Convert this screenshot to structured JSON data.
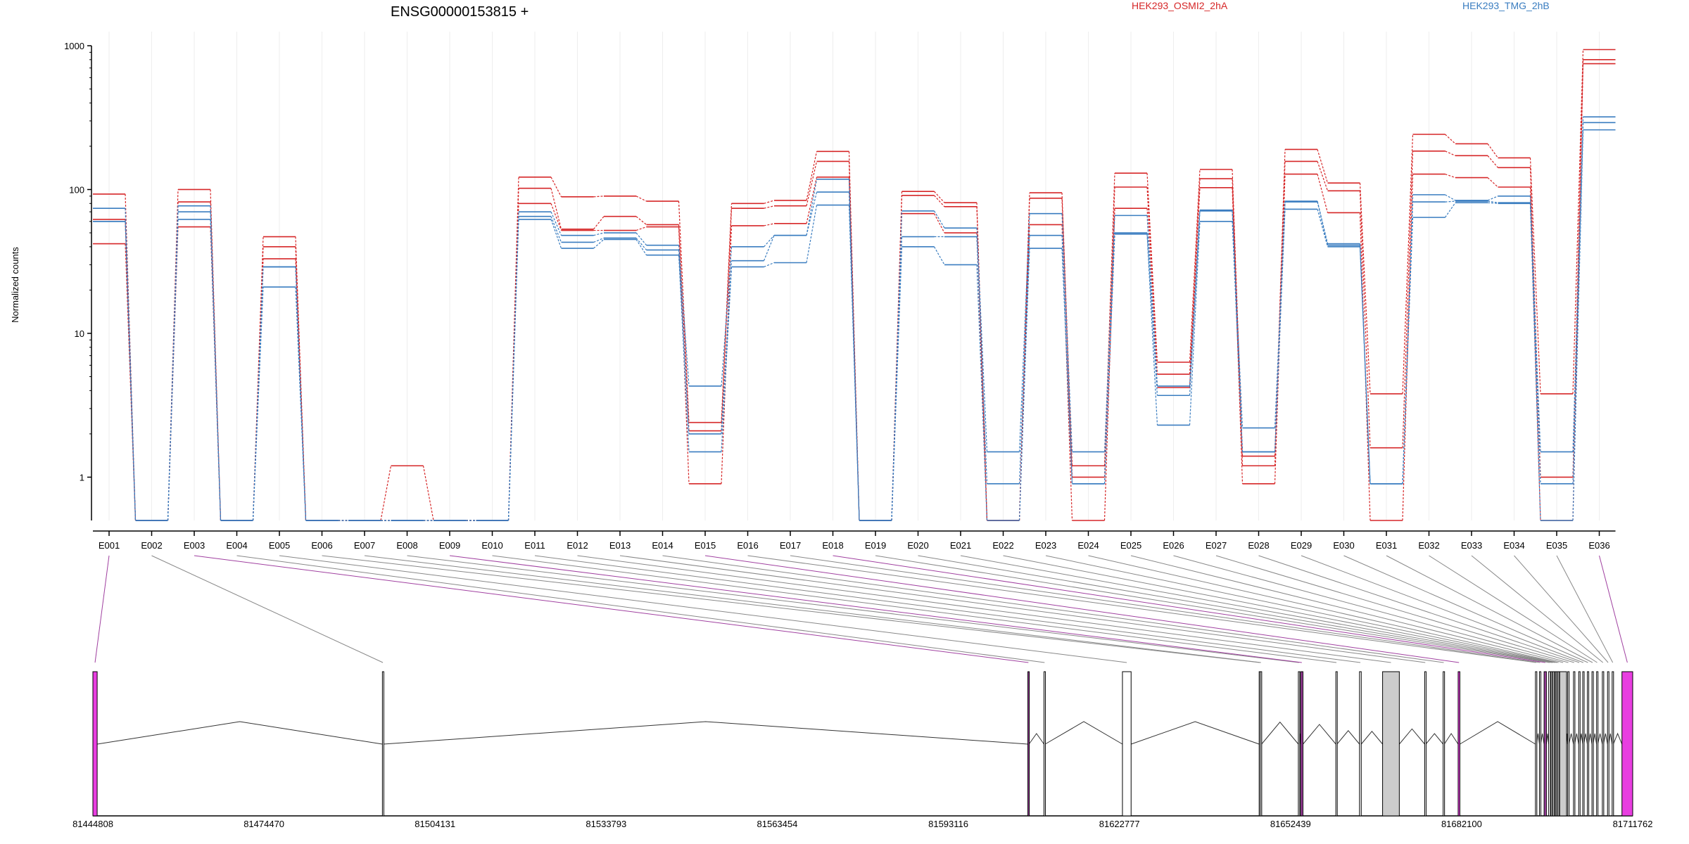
{
  "chart_data": {
    "type": "line",
    "title": "ENSG00000153815 +",
    "ylabel": "Normalized counts",
    "yscale": "log",
    "ylim": [
      0.5,
      1000
    ],
    "yticks": [
      1,
      10,
      100,
      1000
    ],
    "ytick_labels": [
      "1",
      "10",
      "100",
      "1000"
    ],
    "categories": [
      "E001",
      "E002",
      "E003",
      "E004",
      "E005",
      "E006",
      "E007",
      "E008",
      "E009",
      "E010",
      "E011",
      "E012",
      "E013",
      "E014",
      "E015",
      "E016",
      "E017",
      "E018",
      "E019",
      "E020",
      "E021",
      "E022",
      "E023",
      "E024",
      "E025",
      "E026",
      "E027",
      "E028",
      "E029",
      "E030",
      "E031",
      "E032",
      "E033",
      "E034",
      "E035",
      "E036"
    ],
    "legend": [
      {
        "label": "HEK293_OSMI2_2hA",
        "color": "#d62728"
      },
      {
        "label": "HEK293_TMG_2hB",
        "color": "#3a7dc0"
      }
    ],
    "series": [
      {
        "group": "red",
        "values": [
          93,
          0.5,
          100,
          0.5,
          47,
          0.5,
          0.5,
          1.2,
          0.5,
          0.5,
          122,
          89,
          90,
          83,
          2.4,
          80,
          84,
          184,
          0.5,
          97,
          81,
          0.5,
          95,
          1.2,
          130,
          6.3,
          138,
          1.4,
          190,
          111,
          3.8,
          242,
          208,
          166,
          3.8,
          940
        ]
      },
      {
        "group": "red",
        "values": [
          62,
          0.5,
          82,
          0.5,
          40,
          0.5,
          0.5,
          0.5,
          0.5,
          0.5,
          102,
          53,
          65,
          57,
          2.1,
          74,
          77,
          157,
          0.5,
          91,
          76,
          0.5,
          87,
          1.0,
          104,
          5.2,
          119,
          1.2,
          157,
          98,
          1.6,
          185,
          172,
          142,
          1.0,
          800
        ]
      },
      {
        "group": "red",
        "values": [
          42,
          0.5,
          55,
          0.5,
          33,
          0.5,
          0.5,
          0.5,
          0.5,
          0.5,
          80,
          52,
          52,
          55,
          0.9,
          56,
          58,
          122,
          0.5,
          68,
          50,
          0.5,
          57,
          0.5,
          74,
          4.2,
          103,
          0.9,
          128,
          69,
          0.5,
          128,
          121,
          104,
          0.5,
          750
        ]
      },
      {
        "group": "blue",
        "values": [
          74,
          0.5,
          77,
          0.5,
          29,
          0.5,
          0.5,
          0.5,
          0.5,
          0.5,
          70,
          48,
          50,
          41,
          4.3,
          40,
          48,
          118,
          0.5,
          71,
          54,
          1.5,
          68,
          1.5,
          66,
          4.3,
          72,
          2.2,
          83,
          42,
          0.9,
          92,
          84,
          90,
          1.5,
          320
        ]
      },
      {
        "group": "blue",
        "values": [
          60,
          0.5,
          70,
          0.5,
          29,
          0.5,
          0.5,
          0.5,
          0.5,
          0.5,
          65,
          43,
          46,
          38,
          2.0,
          32,
          48,
          96,
          0.5,
          47,
          47,
          0.9,
          48,
          0.9,
          50,
          3.7,
          71,
          1.5,
          82,
          41,
          0.9,
          82,
          83,
          81,
          0.9,
          292
        ]
      },
      {
        "group": "blue",
        "values": [
          60,
          0.5,
          62,
          0.5,
          21,
          0.5,
          0.5,
          0.5,
          0.5,
          0.5,
          62,
          39,
          45,
          35,
          1.5,
          29,
          31,
          78,
          0.5,
          40,
          30,
          0.5,
          39,
          0.9,
          49,
          2.3,
          60,
          1.5,
          73,
          40,
          0.9,
          64,
          81,
          80,
          0.5,
          260
        ]
      }
    ],
    "gene_model": {
      "genomic_range": [
        81444808,
        81711762
      ],
      "coordinate_ticks": [
        81444808,
        81474470,
        81504131,
        81533793,
        81563454,
        81593116,
        81622777,
        81652439,
        81682100,
        81711762
      ],
      "exons": [
        {
          "id": "E001",
          "start": 81444808,
          "end": 81445550,
          "color": "#e83ee0"
        },
        {
          "id": "E002",
          "start": 81495000,
          "end": 81495160,
          "color": "#ffffff"
        },
        {
          "id": "E003",
          "start": 81606900,
          "end": 81607100,
          "color": "#a040a0"
        },
        {
          "id": "E004",
          "start": 81609700,
          "end": 81609900,
          "color": "#ffffff"
        },
        {
          "id": "E005",
          "start": 81623300,
          "end": 81624800,
          "color": "#ffffff"
        },
        {
          "id": "E006",
          "start": 81647000,
          "end": 81647150,
          "color": "#ffffff"
        },
        {
          "id": "E007",
          "start": 81647200,
          "end": 81647420,
          "color": "#ffffff"
        },
        {
          "id": "E008",
          "start": 81653800,
          "end": 81654000,
          "color": "#ffffff"
        },
        {
          "id": "E009",
          "start": 81654200,
          "end": 81654600,
          "color": "#a040a0"
        },
        {
          "id": "E010",
          "start": 81660300,
          "end": 81660500,
          "color": "#ffffff"
        },
        {
          "id": "E011",
          "start": 81664400,
          "end": 81664700,
          "color": "#ffffff"
        },
        {
          "id": "E012",
          "start": 81668400,
          "end": 81671300,
          "color": "#cccccc"
        },
        {
          "id": "E013",
          "start": 81675700,
          "end": 81675900,
          "color": "#ffffff"
        },
        {
          "id": "E014",
          "start": 81678900,
          "end": 81679100,
          "color": "#ffffff"
        },
        {
          "id": "E015",
          "start": 81681500,
          "end": 81681800,
          "color": "#e83ee0"
        },
        {
          "id": "E016",
          "start": 81694900,
          "end": 81695100,
          "color": "#ffffff"
        },
        {
          "id": "E017",
          "start": 81695600,
          "end": 81695800,
          "color": "#ffffff"
        },
        {
          "id": "E018",
          "start": 81696400,
          "end": 81696800,
          "color": "#a040a0"
        },
        {
          "id": "E019",
          "start": 81697200,
          "end": 81697500,
          "color": "#ffffff"
        },
        {
          "id": "E020",
          "start": 81697600,
          "end": 81697800,
          "color": "#ffffff"
        },
        {
          "id": "E021",
          "start": 81697900,
          "end": 81698000,
          "color": "#ffffff"
        },
        {
          "id": "E022",
          "start": 81698200,
          "end": 81698400,
          "color": "#cccccc"
        },
        {
          "id": "E023",
          "start": 81698500,
          "end": 81698700,
          "color": "#ffffff"
        },
        {
          "id": "E024",
          "start": 81698800,
          "end": 81699000,
          "color": "#ffffff"
        },
        {
          "id": "E025",
          "start": 81699100,
          "end": 81700300,
          "color": "#cccccc"
        },
        {
          "id": "E026",
          "start": 81700500,
          "end": 81700700,
          "color": "#ffffff"
        },
        {
          "id": "E027",
          "start": 81701500,
          "end": 81701700,
          "color": "#ffffff"
        },
        {
          "id": "E028",
          "start": 81702400,
          "end": 81702600,
          "color": "#ffffff"
        },
        {
          "id": "E029",
          "start": 81703100,
          "end": 81703300,
          "color": "#ffffff"
        },
        {
          "id": "E030",
          "start": 81703900,
          "end": 81704100,
          "color": "#ffffff"
        },
        {
          "id": "E031",
          "start": 81704700,
          "end": 81704900,
          "color": "#ffffff"
        },
        {
          "id": "E032",
          "start": 81705500,
          "end": 81705700,
          "color": "#ffffff"
        },
        {
          "id": "E033",
          "start": 81706500,
          "end": 81706700,
          "color": "#ffffff"
        },
        {
          "id": "E034",
          "start": 81707400,
          "end": 81707600,
          "color": "#ffffff"
        },
        {
          "id": "E035",
          "start": 81708200,
          "end": 81708400,
          "color": "#ffffff"
        },
        {
          "id": "E036",
          "start": 81709900,
          "end": 81711762,
          "color": "#e83ee0"
        }
      ]
    }
  }
}
